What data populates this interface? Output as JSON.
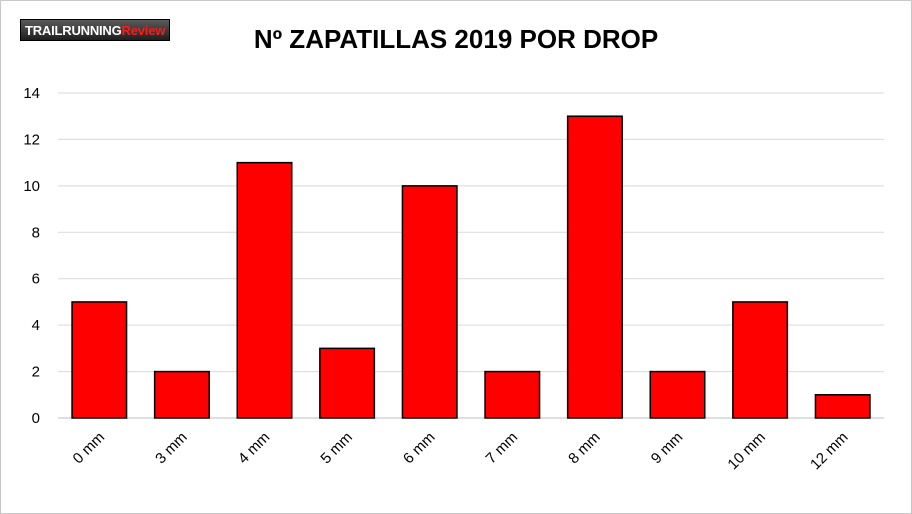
{
  "logo": {
    "part1": "TRAILRUNNING",
    "part2": "Review"
  },
  "chart_data": {
    "type": "bar",
    "title": "Nº ZAPATILLAS 2019 POR DROP",
    "categories": [
      "0 mm",
      "3 mm",
      "4 mm",
      "5 mm",
      "6 mm",
      "7 mm",
      "8 mm",
      "9 mm",
      "10 mm",
      "12 mm"
    ],
    "values": [
      5,
      2,
      11,
      3,
      10,
      2,
      13,
      2,
      5,
      1
    ],
    "ylim": [
      0,
      14
    ],
    "yticks": [
      0,
      2,
      4,
      6,
      8,
      10,
      12,
      14
    ],
    "grid": true,
    "xlabel": "",
    "ylabel": "",
    "colors": {
      "bar": "#ff0000",
      "bar_outline": "#000000",
      "grid": "#d9d9d9"
    }
  }
}
